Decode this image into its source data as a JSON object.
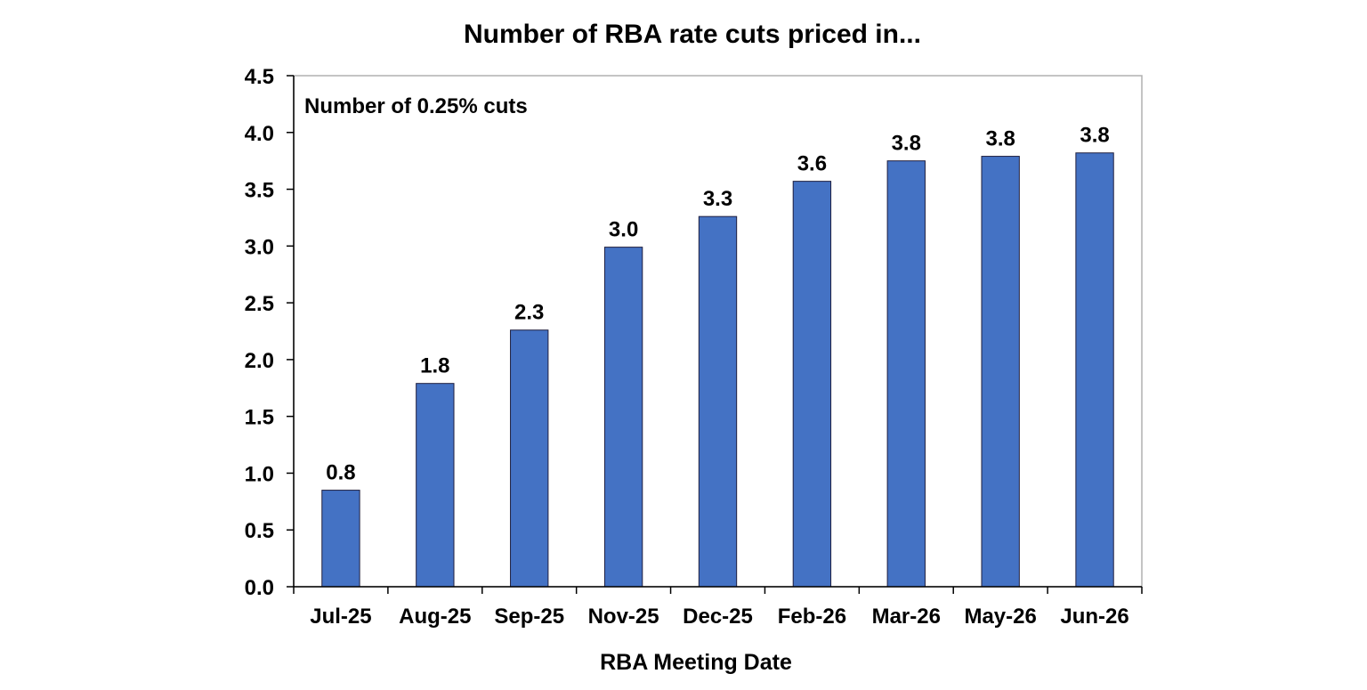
{
  "chart_data": {
    "type": "bar",
    "title": "Number of RBA rate cuts priced in...",
    "annotation": "Number of 0.25% cuts",
    "xlabel": "RBA Meeting Date",
    "ylabel": "",
    "categories": [
      "Jul-25",
      "Aug-25",
      "Sep-25",
      "Nov-25",
      "Dec-25",
      "Feb-26",
      "Mar-26",
      "May-26",
      "Jun-26"
    ],
    "values": [
      0.85,
      1.79,
      2.26,
      2.99,
      3.26,
      3.57,
      3.75,
      3.79,
      3.82
    ],
    "data_labels": [
      "0.8",
      "1.8",
      "2.3",
      "3.0",
      "3.3",
      "3.6",
      "3.8",
      "3.8",
      "3.8"
    ],
    "ylim": [
      0,
      4.5
    ],
    "yticks": [
      "0.0",
      "0.5",
      "1.0",
      "1.5",
      "2.0",
      "2.5",
      "3.0",
      "3.5",
      "4.0",
      "4.5"
    ],
    "grid": false,
    "legend": "none",
    "bar_color": "#4472C4"
  }
}
